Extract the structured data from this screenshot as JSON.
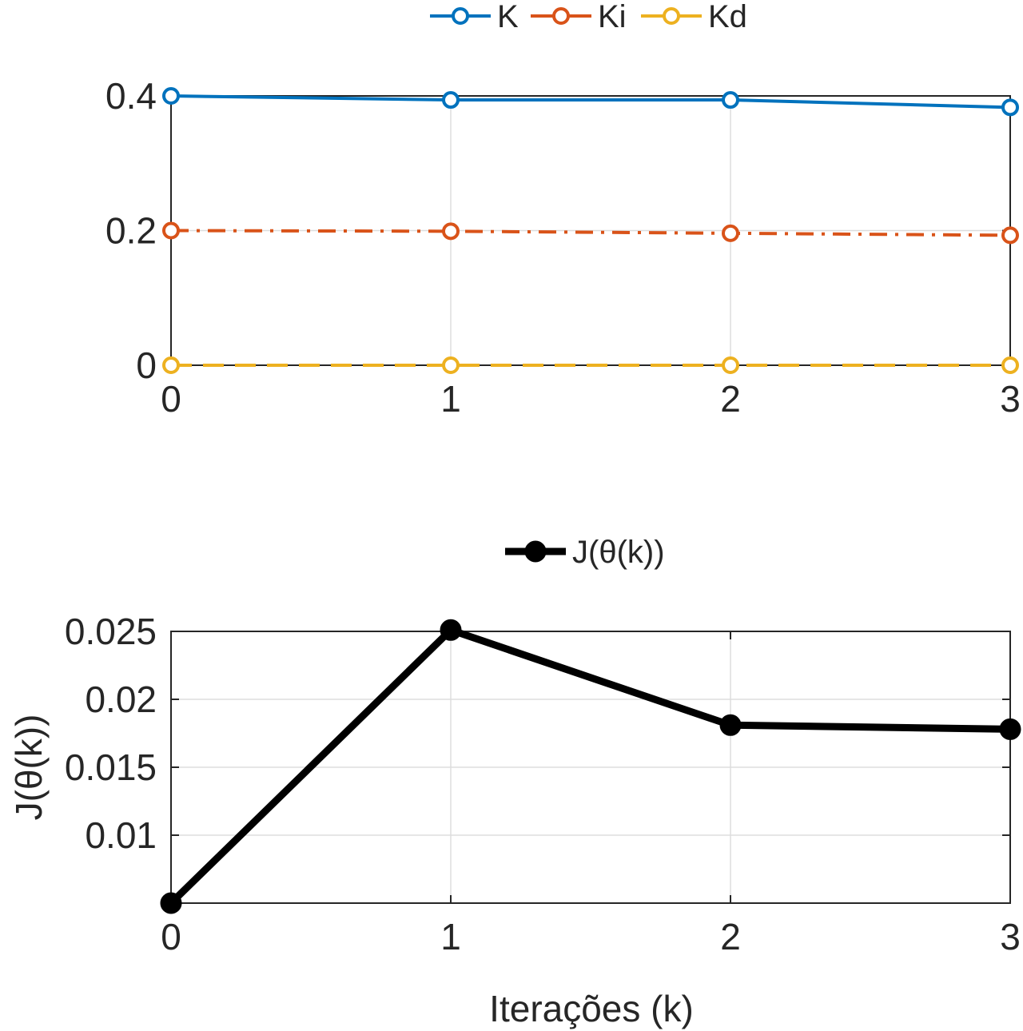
{
  "chart_data": [
    {
      "type": "line",
      "x": [
        0,
        1,
        2,
        3
      ],
      "xlim": [
        0,
        3
      ],
      "ylim": [
        0,
        0.4
      ],
      "xticks": [
        "0",
        "1",
        "2",
        "3"
      ],
      "yticks": [
        "0",
        "0.2",
        "0.4"
      ],
      "grid": true,
      "legend_position": "top-center",
      "series": [
        {
          "name": "K",
          "values": [
            0.4,
            0.394,
            0.394,
            0.383
          ],
          "color": "#0072BD",
          "line_style": "solid"
        },
        {
          "name": "Ki",
          "values": [
            0.2,
            0.199,
            0.196,
            0.193
          ],
          "color": "#D95319",
          "line_style": "dash-dot"
        },
        {
          "name": "Kd",
          "values": [
            0.0,
            0.0,
            0.0,
            0.0
          ],
          "color": "#EDB120",
          "line_style": "dashed"
        }
      ]
    },
    {
      "type": "line",
      "x": [
        0,
        1,
        2,
        3
      ],
      "xlim": [
        0,
        3
      ],
      "ylim": [
        0.005,
        0.025
      ],
      "xticks": [
        "0",
        "1",
        "2",
        "3"
      ],
      "yticks": [
        "0.01",
        "0.015",
        "0.02",
        "0.025"
      ],
      "grid": true,
      "legend_position": "top-center",
      "xlabel": "Iterações (k)",
      "ylabel": "J(θ(k))",
      "series": [
        {
          "name": "J(θ(k))",
          "values": [
            0.005,
            0.0251,
            0.0181,
            0.0178
          ],
          "color": "#000000",
          "line_style": "solid"
        }
      ]
    }
  ]
}
